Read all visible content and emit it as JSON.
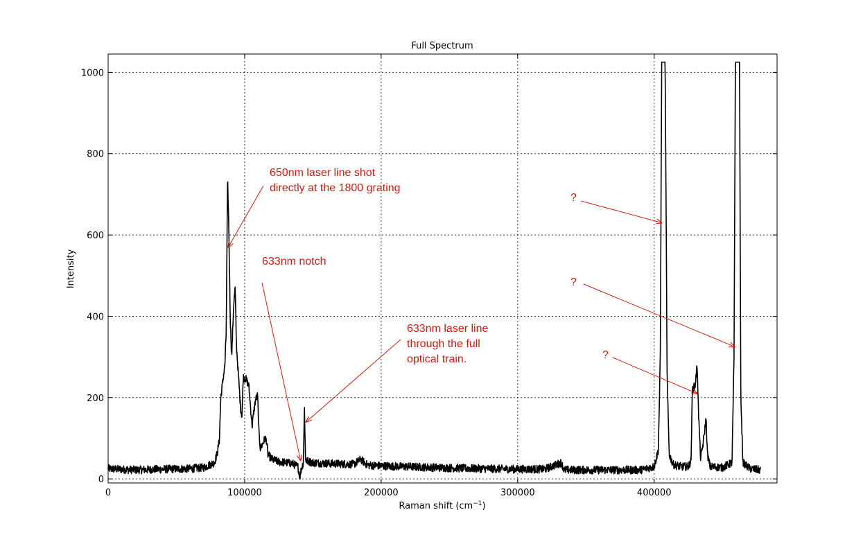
{
  "chart_data": {
    "type": "line",
    "title": "Full Spectrum",
    "xlabel": "Raman shift (cm",
    "xlabel_superscript": "−1",
    "xlabel_suffix": ")",
    "ylabel": "Intensity",
    "xlim": [
      0,
      490000
    ],
    "ylim": [
      -10,
      1045
    ],
    "grid": true,
    "x_ticks": [
      0,
      100000,
      200000,
      300000,
      400000
    ],
    "y_ticks": [
      0,
      200,
      400,
      600,
      800,
      1000
    ],
    "series": [
      {
        "color": "#000000",
        "baseline_noise_amplitude": 10,
        "points": [
          [
            0,
            25
          ],
          [
            20000,
            22
          ],
          [
            40000,
            24
          ],
          [
            60000,
            25
          ],
          [
            70000,
            28
          ],
          [
            78000,
            40
          ],
          [
            80000,
            65
          ],
          [
            81500,
            95
          ],
          [
            82500,
            200
          ],
          [
            84000,
            240
          ],
          [
            85500,
            280
          ],
          [
            86500,
            360
          ],
          [
            87500,
            740
          ],
          [
            88500,
            600
          ],
          [
            89500,
            390
          ],
          [
            90500,
            300
          ],
          [
            92000,
            430
          ],
          [
            93000,
            470
          ],
          [
            94000,
            330
          ],
          [
            95500,
            250
          ],
          [
            97000,
            175
          ],
          [
            98000,
            155
          ],
          [
            99000,
            250
          ],
          [
            101000,
            245
          ],
          [
            103000,
            230
          ],
          [
            104500,
            170
          ],
          [
            105500,
            130
          ],
          [
            106500,
            160
          ],
          [
            108000,
            195
          ],
          [
            109500,
            205
          ],
          [
            110500,
            110
          ],
          [
            111500,
            75
          ],
          [
            113000,
            85
          ],
          [
            115000,
            100
          ],
          [
            116000,
            95
          ],
          [
            117000,
            60
          ],
          [
            120000,
            48
          ],
          [
            125000,
            42
          ],
          [
            130000,
            40
          ],
          [
            135000,
            38
          ],
          [
            139000,
            30
          ],
          [
            140500,
            5
          ],
          [
            141500,
            25
          ],
          [
            143000,
            40
          ],
          [
            143800,
            175
          ],
          [
            144600,
            45
          ],
          [
            150000,
            40
          ],
          [
            160000,
            38
          ],
          [
            170000,
            37
          ],
          [
            180000,
            36
          ],
          [
            185000,
            48
          ],
          [
            190000,
            34
          ],
          [
            200000,
            32
          ],
          [
            220000,
            30
          ],
          [
            240000,
            28
          ],
          [
            260000,
            26
          ],
          [
            280000,
            25
          ],
          [
            300000,
            24
          ],
          [
            320000,
            24
          ],
          [
            332000,
            40
          ],
          [
            334000,
            22
          ],
          [
            350000,
            22
          ],
          [
            370000,
            22
          ],
          [
            390000,
            22
          ],
          [
            400000,
            30
          ],
          [
            403000,
            70
          ],
          [
            404500,
            300
          ],
          [
            405500,
            1025
          ],
          [
            407000,
            1025
          ],
          [
            408000,
            1025
          ],
          [
            409500,
            250
          ],
          [
            411000,
            60
          ],
          [
            414000,
            35
          ],
          [
            420000,
            30
          ],
          [
            425000,
            30
          ],
          [
            427000,
            45
          ],
          [
            428000,
            220
          ],
          [
            430000,
            230
          ],
          [
            431500,
            280
          ],
          [
            432500,
            160
          ],
          [
            434000,
            50
          ],
          [
            436000,
            90
          ],
          [
            438000,
            150
          ],
          [
            439000,
            60
          ],
          [
            441000,
            30
          ],
          [
            450000,
            28
          ],
          [
            457000,
            40
          ],
          [
            458500,
            300
          ],
          [
            459500,
            1025
          ],
          [
            461000,
            1025
          ],
          [
            462500,
            1025
          ],
          [
            463500,
            200
          ],
          [
            465000,
            40
          ],
          [
            470000,
            25
          ],
          [
            478000,
            22
          ]
        ]
      }
    ],
    "annotations": [
      {
        "id": "a650",
        "lines": [
          "650nm laser line shot",
          "directly at the 1800 grating"
        ],
        "target": [
          88000,
          570
        ]
      },
      {
        "id": "notch",
        "lines": [
          "633nm notch"
        ],
        "target": [
          141000,
          45
        ]
      },
      {
        "id": "a633",
        "lines": [
          "633nm laser line",
          "through the full",
          "optical train."
        ],
        "target": [
          145000,
          140
        ]
      },
      {
        "id": "q1",
        "lines": [
          "?"
        ],
        "target": [
          405500,
          630
        ]
      },
      {
        "id": "q2",
        "lines": [
          "?"
        ],
        "target": [
          459000,
          325
        ]
      },
      {
        "id": "q3",
        "lines": [
          "?"
        ],
        "target": [
          431500,
          210
        ]
      }
    ]
  }
}
